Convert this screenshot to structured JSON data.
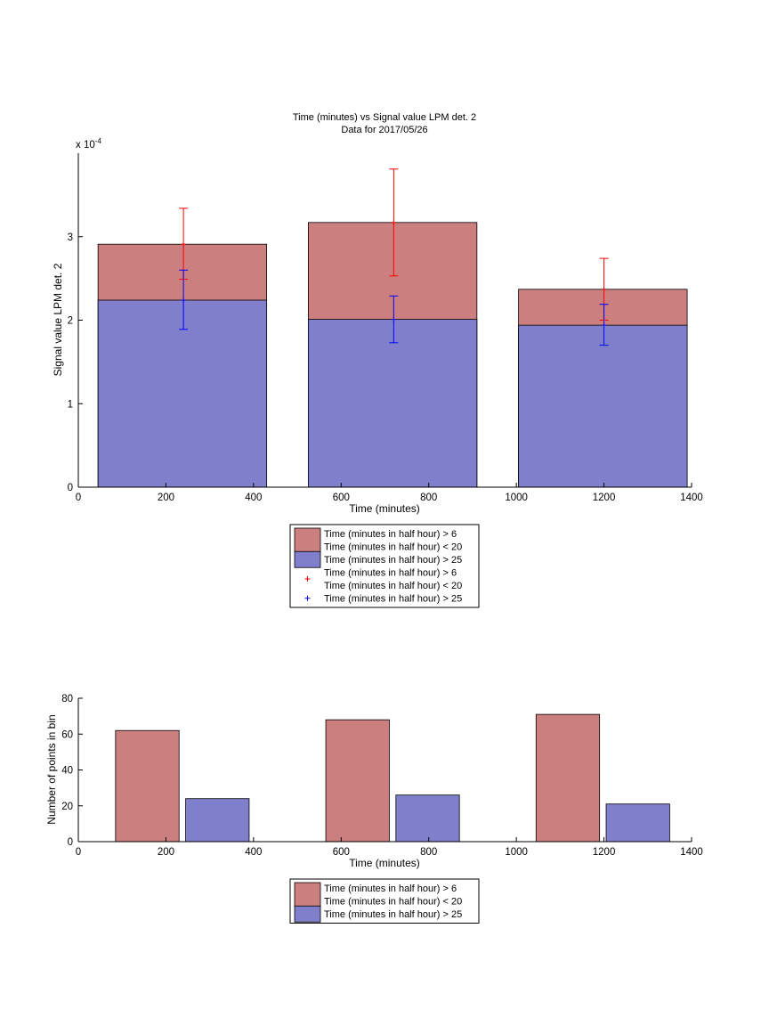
{
  "colors": {
    "red_fill": "#cc7f7f",
    "blue_fill": "#7f7fcc",
    "red_err": "#ff0000",
    "blue_err": "#0000ff",
    "edge": "#000000"
  },
  "chart_data": [
    {
      "type": "bar",
      "title": "Time (minutes) vs Signal value LPM det. 2",
      "subtitle": "Data for 2017/05/26",
      "xlabel": "Time (minutes)",
      "ylabel": "Signal value LPM det. 2",
      "exponent_label": "x 10",
      "exponent_power": "-4",
      "xlim": [
        0,
        1400
      ],
      "ylim": [
        0,
        4
      ],
      "xticks": [
        "0",
        "200",
        "400",
        "600",
        "800",
        "1000",
        "1200",
        "1400"
      ],
      "yticks": [
        "0",
        "1",
        "2",
        "3"
      ],
      "bins": [
        {
          "x0": 45,
          "x1": 430,
          "center": 240
        },
        {
          "x0": 525,
          "x1": 910,
          "center": 720
        },
        {
          "x0": 1005,
          "x1": 1390,
          "center": 1200
        }
      ],
      "series": [
        {
          "name": "Time (minutes in half hour) > 6\nTime (minutes in half hour) < 20",
          "color": "red",
          "values": [
            2.91,
            3.17,
            2.37
          ],
          "error_center": [
            2.91,
            3.17,
            2.37
          ],
          "error_low": [
            2.49,
            2.53,
            2.0
          ],
          "error_high": [
            3.34,
            3.81,
            2.74
          ]
        },
        {
          "name": "Time (minutes in half hour) > 25",
          "color": "blue",
          "values": [
            2.24,
            2.01,
            1.94
          ],
          "error_center": [
            2.24,
            2.01,
            1.94
          ],
          "error_low": [
            1.89,
            1.73,
            1.7
          ],
          "error_high": [
            2.6,
            2.29,
            2.19
          ]
        }
      ],
      "legend": [
        {
          "kind": "patch",
          "color": "red",
          "lines": [
            "Time (minutes in half hour) > 6",
            "Time (minutes in half hour) < 20"
          ]
        },
        {
          "kind": "patch",
          "color": "blue",
          "lines": [
            "Time (minutes in half hour) > 25"
          ]
        },
        {
          "kind": "marker",
          "color": "red",
          "lines": [
            "Time (minutes in half hour) > 6",
            "Time (minutes in half hour) < 20"
          ]
        },
        {
          "kind": "marker",
          "color": "blue",
          "lines": [
            "Time (minutes in half hour) > 25"
          ]
        }
      ]
    },
    {
      "type": "bar",
      "xlabel": "Time (minutes)",
      "ylabel": "Number of points in bin",
      "xlim": [
        0,
        1400
      ],
      "ylim": [
        0,
        80
      ],
      "xticks": [
        "0",
        "200",
        "400",
        "600",
        "800",
        "1000",
        "1200",
        "1400"
      ],
      "yticks": [
        "0",
        "20",
        "40",
        "60",
        "80"
      ],
      "bars": [
        {
          "series": "red",
          "x0": 85,
          "x1": 230,
          "value": 62
        },
        {
          "series": "blue",
          "x0": 245,
          "x1": 390,
          "value": 24
        },
        {
          "series": "red",
          "x0": 565,
          "x1": 710,
          "value": 68
        },
        {
          "series": "blue",
          "x0": 725,
          "x1": 870,
          "value": 26
        },
        {
          "series": "red",
          "x0": 1045,
          "x1": 1190,
          "value": 71
        },
        {
          "series": "blue",
          "x0": 1205,
          "x1": 1350,
          "value": 21
        }
      ],
      "legend": [
        {
          "kind": "patch",
          "color": "red",
          "lines": [
            "Time (minutes in half hour) > 6",
            "Time (minutes in half hour) < 20"
          ]
        },
        {
          "kind": "patch",
          "color": "blue",
          "lines": [
            "Time (minutes in half hour) > 25"
          ]
        }
      ]
    }
  ]
}
